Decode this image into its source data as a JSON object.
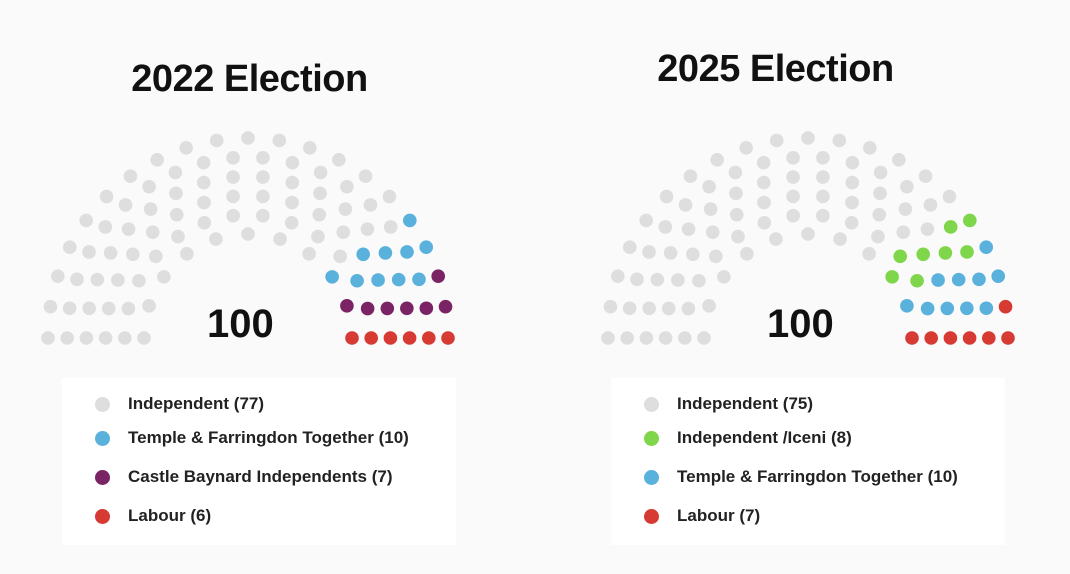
{
  "chart_data": [
    {
      "type": "parliament",
      "title": "2022 Election",
      "total": "100",
      "series": [
        {
          "name": "Independent (77)",
          "value": 77,
          "color": "#dedede"
        },
        {
          "name": "Temple & Farringdon Together (10)",
          "value": 10,
          "color": "#5ab1dc"
        },
        {
          "name": "Castle Baynard Independents (7)",
          "value": 7,
          "color": "#7a2466"
        },
        {
          "name": "Labour (6)",
          "value": 6,
          "color": "#d63a32"
        }
      ]
    },
    {
      "type": "parliament",
      "title": "2025 Election",
      "total": "100",
      "series": [
        {
          "name": "Independent (75)",
          "value": 75,
          "color": "#dedede"
        },
        {
          "name": "Independent /Iceni (8)",
          "value": 8,
          "color": "#7fd64a"
        },
        {
          "name": "Temple & Farringdon Together (10)",
          "value": 10,
          "color": "#5ab1dc"
        },
        {
          "name": "Labour (7)",
          "value": 7,
          "color": "#d63a32"
        }
      ]
    }
  ]
}
